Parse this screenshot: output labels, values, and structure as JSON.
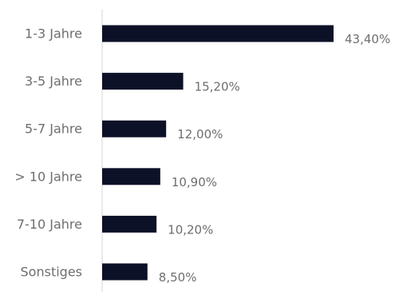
{
  "chart_data": {
    "type": "bar",
    "orientation": "horizontal",
    "categories": [
      "1-3 Jahre",
      "3-5 Jahre",
      "5-7 Jahre",
      "> 10 Jahre",
      "7-10 Jahre",
      "Sonstiges"
    ],
    "values": [
      43.4,
      15.2,
      12.0,
      10.9,
      10.2,
      8.5
    ],
    "value_labels": [
      "43,40%",
      "15,20%",
      "12,00%",
      "10,90%",
      "10,20%",
      "8,50%"
    ],
    "title": "",
    "xlabel": "",
    "ylabel": "",
    "xlim": [
      0,
      43.4
    ],
    "grid": false,
    "legend": "none"
  },
  "colors": {
    "bar": "#0d1128",
    "axis": "#d6d6d6",
    "category_text": "#6e6e6e",
    "value_text": "#6e6e6e",
    "background": "#ffffff"
  }
}
